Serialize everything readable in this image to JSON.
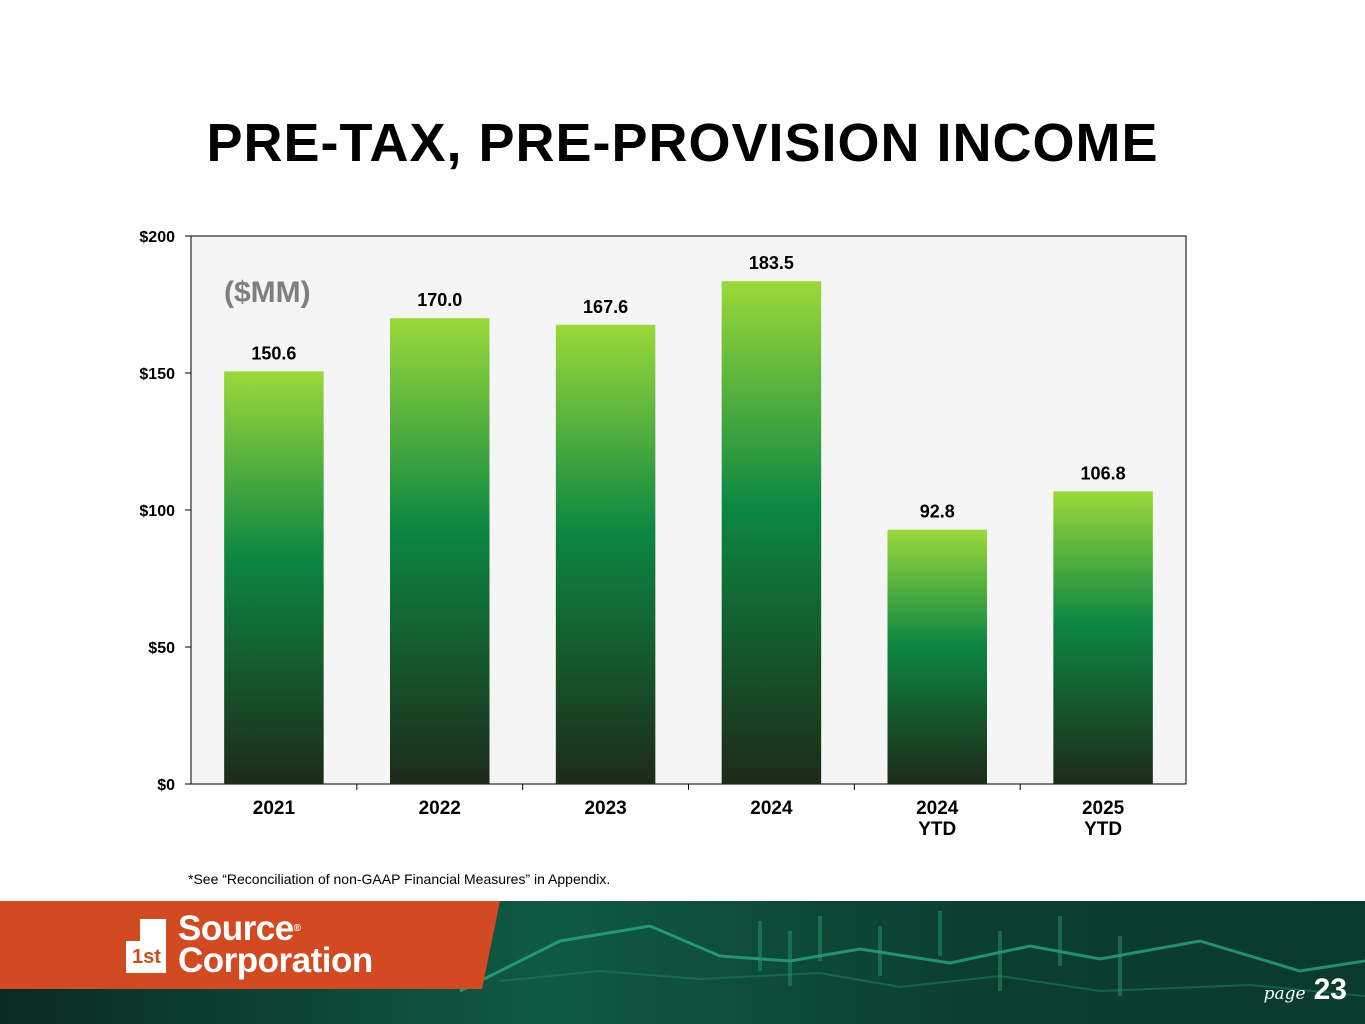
{
  "title": "PRE-TAX, PRE-PROVISION INCOME",
  "unit_label": "($MM)",
  "footnote": "*See “Reconciliation of non-GAAP Financial Measures” in Appendix.",
  "logo": {
    "line1": "Source",
    "line2": "Corporation",
    "mark": "1st",
    "reg": "®"
  },
  "page": {
    "word": "page",
    "number": "23"
  },
  "colors": {
    "bar_top": "#9bd93a",
    "bar_mid": "#0c8742",
    "bar_bottom": "#1d2a18",
    "plot_bg": "#f5f5f5",
    "brand_orange": "#d24a22"
  },
  "chart_data": {
    "type": "bar",
    "title": "PRE-TAX, PRE-PROVISION INCOME",
    "categories": [
      [
        "2021"
      ],
      [
        "2022"
      ],
      [
        "2023"
      ],
      [
        "2024"
      ],
      [
        "2024",
        "YTD"
      ],
      [
        "2025",
        "YTD"
      ]
    ],
    "values": [
      150.6,
      170.0,
      167.6,
      183.5,
      92.8,
      106.8
    ],
    "value_labels": [
      "150.6",
      "170.0",
      "167.6",
      "183.5",
      "92.8",
      "106.8"
    ],
    "ylim": [
      0,
      200
    ],
    "yticks": [
      0,
      50,
      100,
      150,
      200
    ],
    "ytick_labels": [
      "$0",
      "$50",
      "$100",
      "$150",
      "$200"
    ],
    "xlabel": "",
    "ylabel": "",
    "grid": false
  }
}
